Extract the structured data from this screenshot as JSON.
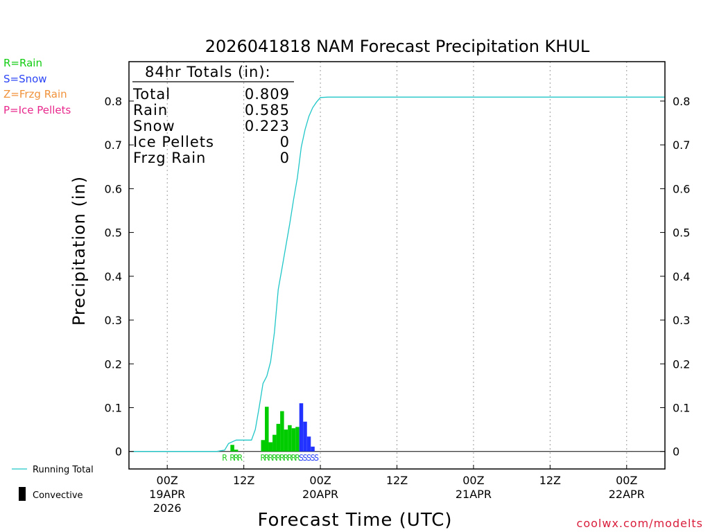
{
  "chart_data": {
    "type": "bar",
    "title": "2026041818 NAM Forecast Precipitation KHUL",
    "xlabel": "Forecast Time (UTC)",
    "ylabel": "Precipitation (in)",
    "ylim": [
      -0.04,
      0.89
    ],
    "y_ticks": [
      0,
      0.1,
      0.2,
      0.3,
      0.4,
      0.5,
      0.6,
      0.7,
      0.8
    ],
    "y_tick_labels": [
      "0",
      "0.1",
      "0.2",
      "0.3",
      "0.4",
      "0.5",
      "0.6",
      "0.7",
      "0.8"
    ],
    "x_range_hours": [
      -5,
      65
    ],
    "x_ticks": [
      {
        "hour": 0,
        "label": "00Z",
        "date": "19APR",
        "year": "2026"
      },
      {
        "hour": 10,
        "label": "12Z",
        "date": "",
        "year": ""
      },
      {
        "hour": 20,
        "label": "00Z",
        "date": "20APR",
        "year": ""
      },
      {
        "hour": 30,
        "label": "12Z",
        "date": "",
        "year": ""
      },
      {
        "hour": 40,
        "label": "00Z",
        "date": "21APR",
        "year": ""
      },
      {
        "hour": 50,
        "label": "12Z",
        "date": "",
        "year": ""
      },
      {
        "hour": 60,
        "label": "00Z",
        "date": "22APR",
        "year": ""
      }
    ],
    "bars": [
      {
        "hour": 8.5,
        "value": 0.015,
        "type": "R"
      },
      {
        "hour": 9.0,
        "value": 0.004,
        "type": "R"
      },
      {
        "hour": 12.5,
        "value": 0.026,
        "type": "R"
      },
      {
        "hour": 13.0,
        "value": 0.102,
        "type": "R"
      },
      {
        "hour": 13.5,
        "value": 0.021,
        "type": "R"
      },
      {
        "hour": 14.0,
        "value": 0.038,
        "type": "R"
      },
      {
        "hour": 14.5,
        "value": 0.063,
        "type": "R"
      },
      {
        "hour": 15.0,
        "value": 0.092,
        "type": "R"
      },
      {
        "hour": 15.5,
        "value": 0.05,
        "type": "R"
      },
      {
        "hour": 16.0,
        "value": 0.06,
        "type": "R"
      },
      {
        "hour": 16.5,
        "value": 0.053,
        "type": "R"
      },
      {
        "hour": 17.0,
        "value": 0.056,
        "type": "R"
      },
      {
        "hour": 17.5,
        "value": 0.11,
        "type": "S"
      },
      {
        "hour": 18.0,
        "value": 0.068,
        "type": "S"
      },
      {
        "hour": 18.5,
        "value": 0.034,
        "type": "S"
      },
      {
        "hour": 19.0,
        "value": 0.011,
        "type": "S"
      }
    ],
    "precip_type_letters": [
      {
        "hour": 7.5,
        "letter": "R"
      },
      {
        "hour": 8.5,
        "letter": "R"
      },
      {
        "hour": 9.0,
        "letter": "R"
      },
      {
        "hour": 9.5,
        "letter": "R"
      },
      {
        "hour": 12.5,
        "letter": "R"
      },
      {
        "hour": 13.0,
        "letter": "R"
      },
      {
        "hour": 13.5,
        "letter": "R"
      },
      {
        "hour": 14.0,
        "letter": "R"
      },
      {
        "hour": 14.5,
        "letter": "R"
      },
      {
        "hour": 15.0,
        "letter": "R"
      },
      {
        "hour": 15.5,
        "letter": "R"
      },
      {
        "hour": 16.0,
        "letter": "R"
      },
      {
        "hour": 16.5,
        "letter": "R"
      },
      {
        "hour": 17.0,
        "letter": "R"
      },
      {
        "hour": 17.5,
        "letter": "S"
      },
      {
        "hour": 18.0,
        "letter": "S"
      },
      {
        "hour": 18.5,
        "letter": "S"
      },
      {
        "hour": 19.0,
        "letter": "S"
      },
      {
        "hour": 19.5,
        "letter": "S"
      }
    ],
    "running_total": {
      "name": "Running Total",
      "x": [
        -4.5,
        6.5,
        7.5,
        8.0,
        9.0,
        11.0,
        11.5,
        12.0,
        12.5,
        13.0,
        13.5,
        14.0,
        14.5,
        15.0,
        15.5,
        16.0,
        16.5,
        17.0,
        17.5,
        18.0,
        18.5,
        19.0,
        19.5,
        20.0,
        21.0,
        65.0
      ],
      "y": [
        0,
        0,
        0.003,
        0.018,
        0.026,
        0.026,
        0.05,
        0.1,
        0.155,
        0.172,
        0.205,
        0.272,
        0.37,
        0.42,
        0.47,
        0.52,
        0.575,
        0.625,
        0.695,
        0.735,
        0.765,
        0.785,
        0.798,
        0.808,
        0.809,
        0.809
      ]
    },
    "totals_box": {
      "heading": "84hr Totals (in):",
      "rows": [
        {
          "label": "Total",
          "value": "0.809"
        },
        {
          "label": "Rain",
          "value": "0.585"
        },
        {
          "label": "Snow",
          "value": "0.223"
        },
        {
          "label": "Ice Pellets",
          "value": "0"
        },
        {
          "label": "Frzg Rain",
          "value": "0"
        }
      ]
    },
    "type_legend": [
      {
        "text": "R=Rain",
        "color": "#11cc11"
      },
      {
        "text": "S=Snow",
        "color": "#2b44f5"
      },
      {
        "text": "Z=Frzg Rain",
        "color": "#f0923a"
      },
      {
        "text": "P=Ice Pellets",
        "color": "#e8288c"
      }
    ],
    "series_legend": {
      "running_total": "Running Total",
      "convective": "Convective"
    },
    "legend_position": "left"
  },
  "colors": {
    "rain": "#00cc00",
    "snow": "#2233ff",
    "running_total": "#1fc6c8",
    "rain_letters": "#22cc22",
    "snow_letters": "#2b44f5",
    "watermark": "#d91c3a"
  },
  "watermark": "coolwx.com/modelts"
}
